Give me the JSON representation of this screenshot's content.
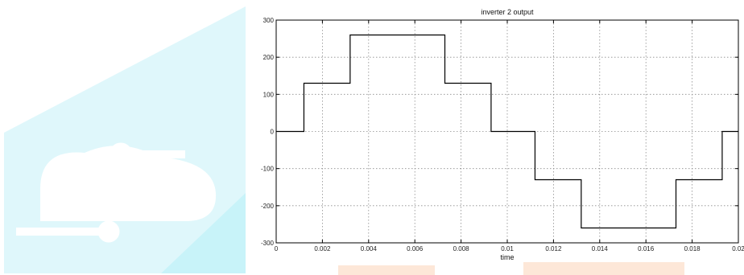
{
  "colors": {
    "watermark_panel": "#dff7fb",
    "watermark_accent": "#c8f3f9",
    "watermark_ribbon": "#fde7d8",
    "line": "#000000",
    "grid": "#8c8c8c"
  },
  "watermark": {
    "icon": "circuit-cloud-logo-icon"
  },
  "chart_data": {
    "type": "line",
    "title": "inverter 2 output",
    "xlabel": "time",
    "ylabel": "",
    "xlim": [
      0,
      0.02
    ],
    "ylim": [
      -300,
      300
    ],
    "grid": true,
    "xticks": [
      0,
      0.002,
      0.004,
      0.006,
      0.008,
      0.01,
      0.012,
      0.014,
      0.016,
      0.018,
      0.02
    ],
    "xtick_labels": [
      "0",
      "0.002",
      "0.004",
      "0.006",
      "0.008",
      "0.01",
      "0.012",
      "0.014",
      "0.016",
      "0.018",
      "0.02"
    ],
    "yticks": [
      300,
      200,
      100,
      0,
      -100,
      -200,
      -300
    ],
    "ytick_labels": [
      "300",
      "200",
      "100",
      "0",
      "-100",
      "-200",
      "-300"
    ],
    "series": [
      {
        "x": [
          0,
          0.0012,
          0.0012,
          0.0032,
          0.0032,
          0.0073,
          0.0073,
          0.0093,
          0.0093,
          0.0112,
          0.0112,
          0.0132,
          0.0132,
          0.0173,
          0.0173,
          0.0193,
          0.0193,
          0.02
        ],
        "y": [
          0,
          0,
          130,
          130,
          260,
          260,
          130,
          130,
          0,
          0,
          -130,
          -130,
          -260,
          -260,
          -130,
          -130,
          0,
          0
        ]
      }
    ]
  }
}
